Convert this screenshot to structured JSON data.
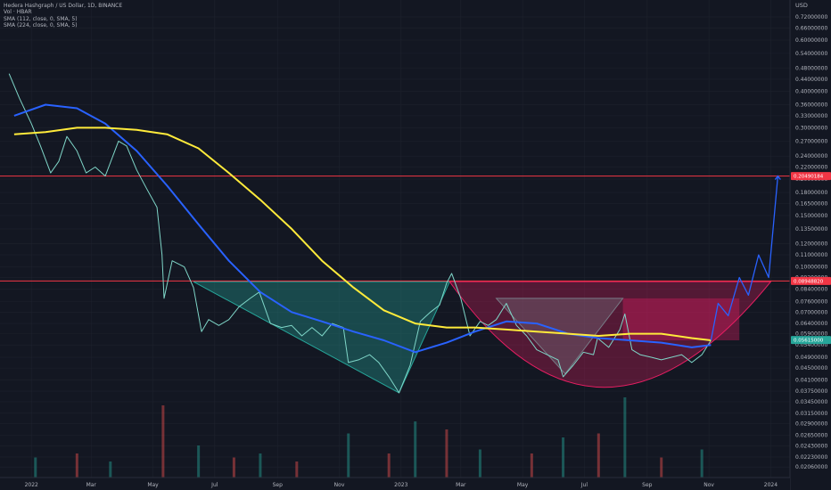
{
  "legend": {
    "title": "Hedera Hashgraph / US Dollar, 1D, BINANCE",
    "vol": "Vol · HBAR",
    "sma1": "SMA (112, close, 0, SMA, 5)",
    "sma2": "SMA (224, close, 0, SMA, 5)"
  },
  "colors": {
    "background": "#131722",
    "grid": "#1e222d",
    "sma112": "#2962ff",
    "sma224": "#ffeb3b",
    "up": "#26a69a",
    "down": "#ef5350",
    "resistance": "#f23645",
    "projection": "#2962ff",
    "triangle1": "#26a69a",
    "triangle2": "#787b86",
    "cup": "#e91e63"
  },
  "chart_data": {
    "type": "line",
    "y_axis_unit": "USD",
    "y_scale": "log",
    "y_ticks": [
      "0.72000000",
      "0.66000000",
      "0.60000000",
      "0.54000000",
      "0.48000000",
      "0.44000000",
      "0.40000000",
      "0.36000000",
      "0.33000000",
      "0.30000000",
      "0.27000000",
      "0.24000000",
      "0.22000000",
      "0.20000000",
      "0.18000000",
      "0.16500000",
      "0.15000000",
      "0.13500000",
      "0.12000000",
      "0.11000000",
      "0.10000000",
      "0.09200000",
      "0.08400000",
      "0.07600000",
      "0.07000000",
      "0.06400000",
      "0.05900000",
      "0.05400000",
      "0.04900000",
      "0.04500000",
      "0.04100000",
      "0.03750000",
      "0.03450000",
      "0.03150000",
      "0.02900000",
      "0.02650000",
      "0.02430000",
      "0.02230000",
      "0.02060000"
    ],
    "x_ticks": [
      "2022",
      "Mar",
      "May",
      "Jul",
      "Sep",
      "Nov",
      "2023",
      "Mar",
      "May",
      "Jul",
      "Sep",
      "Nov",
      "2024"
    ],
    "y_range": [
      0.0195,
      0.8
    ],
    "price_badges": {
      "resistance_top": "0.20490184",
      "resistance_mid": "0.08948820",
      "current": "0.05615000"
    },
    "series": [
      {
        "name": "HBAR price",
        "values": [
          [
            "2021-12-10",
            0.46
          ],
          [
            "2021-12-20",
            0.38
          ],
          [
            "2022-01-01",
            0.31
          ],
          [
            "2022-01-10",
            0.26
          ],
          [
            "2022-01-20",
            0.21
          ],
          [
            "2022-01-28",
            0.23
          ],
          [
            "2022-02-05",
            0.28
          ],
          [
            "2022-02-15",
            0.25
          ],
          [
            "2022-02-24",
            0.21
          ],
          [
            "2022-03-05",
            0.22
          ],
          [
            "2022-03-15",
            0.205
          ],
          [
            "2022-03-28",
            0.27
          ],
          [
            "2022-04-05",
            0.26
          ],
          [
            "2022-04-15",
            0.215
          ],
          [
            "2022-04-25",
            0.185
          ],
          [
            "2022-05-05",
            0.16
          ],
          [
            "2022-05-10",
            0.11
          ],
          [
            "2022-05-12",
            0.078
          ],
          [
            "2022-05-20",
            0.105
          ],
          [
            "2022-06-01",
            0.1
          ],
          [
            "2022-06-10",
            0.085
          ],
          [
            "2022-06-18",
            0.06
          ],
          [
            "2022-06-25",
            0.066
          ],
          [
            "2022-07-05",
            0.063
          ],
          [
            "2022-07-15",
            0.066
          ],
          [
            "2022-07-25",
            0.073
          ],
          [
            "2022-08-05",
            0.078
          ],
          [
            "2022-08-14",
            0.082
          ],
          [
            "2022-08-25",
            0.064
          ],
          [
            "2022-09-05",
            0.062
          ],
          [
            "2022-09-15",
            0.063
          ],
          [
            "2022-09-25",
            0.058
          ],
          [
            "2022-10-05",
            0.062
          ],
          [
            "2022-10-15",
            0.058
          ],
          [
            "2022-10-25",
            0.064
          ],
          [
            "2022-11-05",
            0.062
          ],
          [
            "2022-11-10",
            0.047
          ],
          [
            "2022-11-20",
            0.048
          ],
          [
            "2022-12-01",
            0.05
          ],
          [
            "2022-12-10",
            0.047
          ],
          [
            "2022-12-20",
            0.042
          ],
          [
            "2022-12-30",
            0.037
          ],
          [
            "2023-01-10",
            0.046
          ],
          [
            "2023-01-20",
            0.065
          ],
          [
            "2023-01-30",
            0.07
          ],
          [
            "2023-02-08",
            0.074
          ],
          [
            "2023-02-15",
            0.088
          ],
          [
            "2023-02-20",
            0.095
          ],
          [
            "2023-03-01",
            0.078
          ],
          [
            "2023-03-10",
            0.058
          ],
          [
            "2023-03-20",
            0.065
          ],
          [
            "2023-03-28",
            0.063
          ],
          [
            "2023-04-05",
            0.066
          ],
          [
            "2023-04-15",
            0.075
          ],
          [
            "2023-04-25",
            0.063
          ],
          [
            "2023-05-05",
            0.058
          ],
          [
            "2023-05-15",
            0.052
          ],
          [
            "2023-05-25",
            0.05
          ],
          [
            "2023-06-05",
            0.048
          ],
          [
            "2023-06-10",
            0.042
          ],
          [
            "2023-06-20",
            0.046
          ],
          [
            "2023-06-30",
            0.051
          ],
          [
            "2023-07-10",
            0.05
          ],
          [
            "2023-07-14",
            0.057
          ],
          [
            "2023-07-25",
            0.053
          ],
          [
            "2023-08-05",
            0.061
          ],
          [
            "2023-08-10",
            0.069
          ],
          [
            "2023-08-17",
            0.052
          ],
          [
            "2023-08-25",
            0.05
          ],
          [
            "2023-09-05",
            0.049
          ],
          [
            "2023-09-15",
            0.048
          ],
          [
            "2023-09-25",
            0.049
          ],
          [
            "2023-10-05",
            0.05
          ],
          [
            "2023-10-15",
            0.047
          ],
          [
            "2023-10-25",
            0.05
          ],
          [
            "2023-11-03",
            0.056
          ]
        ]
      },
      {
        "name": "SMA (112, close, 0, SMA, 5)",
        "values": [
          [
            "2021-12-15",
            0.33
          ],
          [
            "2022-01-15",
            0.36
          ],
          [
            "2022-02-15",
            0.35
          ],
          [
            "2022-03-15",
            0.31
          ],
          [
            "2022-04-15",
            0.25
          ],
          [
            "2022-05-15",
            0.19
          ],
          [
            "2022-06-15",
            0.14
          ],
          [
            "2022-07-15",
            0.105
          ],
          [
            "2022-08-15",
            0.082
          ],
          [
            "2022-09-15",
            0.07
          ],
          [
            "2022-10-15",
            0.065
          ],
          [
            "2022-11-15",
            0.06
          ],
          [
            "2022-12-15",
            0.056
          ],
          [
            "2023-01-15",
            0.051
          ],
          [
            "2023-02-15",
            0.055
          ],
          [
            "2023-03-15",
            0.06
          ],
          [
            "2023-04-15",
            0.065
          ],
          [
            "2023-05-15",
            0.064
          ],
          [
            "2023-06-15",
            0.059
          ],
          [
            "2023-07-15",
            0.057
          ],
          [
            "2023-08-15",
            0.056
          ],
          [
            "2023-09-15",
            0.055
          ],
          [
            "2023-10-15",
            0.053
          ],
          [
            "2023-11-03",
            0.054
          ]
        ]
      },
      {
        "name": "SMA (224, close, 0, SMA, 5)",
        "values": [
          [
            "2021-12-15",
            0.285
          ],
          [
            "2022-01-15",
            0.29
          ],
          [
            "2022-02-15",
            0.3
          ],
          [
            "2022-03-15",
            0.3
          ],
          [
            "2022-04-15",
            0.295
          ],
          [
            "2022-05-15",
            0.285
          ],
          [
            "2022-06-15",
            0.255
          ],
          [
            "2022-07-15",
            0.21
          ],
          [
            "2022-08-15",
            0.17
          ],
          [
            "2022-09-15",
            0.135
          ],
          [
            "2022-10-15",
            0.105
          ],
          [
            "2022-11-15",
            0.085
          ],
          [
            "2022-12-15",
            0.071
          ],
          [
            "2023-01-15",
            0.064
          ],
          [
            "2023-02-15",
            0.062
          ],
          [
            "2023-03-15",
            0.062
          ],
          [
            "2023-04-15",
            0.061
          ],
          [
            "2023-05-15",
            0.06
          ],
          [
            "2023-06-15",
            0.059
          ],
          [
            "2023-07-15",
            0.058
          ],
          [
            "2023-08-15",
            0.059
          ],
          [
            "2023-09-15",
            0.059
          ],
          [
            "2023-10-15",
            0.057
          ],
          [
            "2023-11-03",
            0.056
          ]
        ]
      },
      {
        "name": "Projection path",
        "values": [
          [
            "2023-11-03",
            0.056
          ],
          [
            "2023-11-10",
            0.075
          ],
          [
            "2023-11-20",
            0.068
          ],
          [
            "2023-12-01",
            0.092
          ],
          [
            "2023-12-10",
            0.08
          ],
          [
            "2023-12-20",
            0.11
          ],
          [
            "2023-12-30",
            0.092
          ],
          [
            "2024-01-08",
            0.205
          ]
        ]
      }
    ],
    "resistance_levels": [
      0.20490184,
      0.0894882
    ],
    "patterns": {
      "triangle1": [
        [
          "2022-06-10",
          0.089
        ],
        [
          "2023-02-18",
          0.089
        ],
        [
          "2022-12-30",
          0.037
        ]
      ],
      "triangle2": [
        [
          "2023-04-05",
          0.078
        ],
        [
          "2023-08-08",
          0.078
        ],
        [
          "2023-06-12",
          0.043
        ]
      ],
      "cup": {
        "start": [
          "2023-02-18",
          0.089
        ],
        "bottom": [
          "2023-07-15",
          0.037
        ],
        "end": [
          "2024-01-01",
          0.089
        ]
      },
      "handle_box": [
        [
          "2023-08-08",
          0.078
        ],
        [
          "2023-12-01",
          0.078
        ],
        [
          "2023-12-01",
          0.056
        ],
        [
          "2023-08-08",
          0.056
        ]
      ]
    },
    "volume": [
      [
        "2022-01-05",
        0.25
      ],
      [
        "2022-02-15",
        0.3
      ],
      [
        "2022-03-20",
        0.2
      ],
      [
        "2022-05-11",
        0.9
      ],
      [
        "2022-06-15",
        0.4
      ],
      [
        "2022-07-20",
        0.25
      ],
      [
        "2022-08-15",
        0.3
      ],
      [
        "2022-09-20",
        0.2
      ],
      [
        "2022-11-10",
        0.55
      ],
      [
        "2022-12-20",
        0.3
      ],
      [
        "2023-01-15",
        0.7
      ],
      [
        "2023-02-15",
        0.6
      ],
      [
        "2023-03-20",
        0.35
      ],
      [
        "2023-05-10",
        0.3
      ],
      [
        "2023-06-10",
        0.5
      ],
      [
        "2023-07-15",
        0.55
      ],
      [
        "2023-08-10",
        1.0
      ],
      [
        "2023-09-15",
        0.25
      ],
      [
        "2023-10-25",
        0.35
      ]
    ]
  }
}
